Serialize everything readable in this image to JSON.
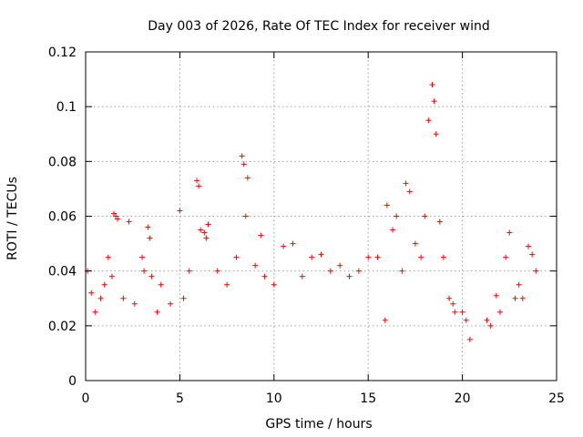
{
  "chart_data": {
    "type": "scatter",
    "title": "Day 003 of 2026, Rate Of TEC Index for receiver wind",
    "xlabel": "GPS time / hours",
    "ylabel": "ROTI / TECUs",
    "xlim": [
      0,
      25
    ],
    "ylim": [
      0,
      0.12
    ],
    "xticks": [
      0,
      5,
      10,
      15,
      20,
      25
    ],
    "xtick_labels": [
      "0",
      "5",
      "10",
      "15",
      "20",
      "25"
    ],
    "yticks": [
      0,
      0.02,
      0.04,
      0.06,
      0.08,
      0.1,
      0.12
    ],
    "ytick_labels": [
      "0",
      "0.02",
      "0.04",
      "0.06",
      "0.08",
      "0.1",
      "0.12"
    ],
    "grid": true,
    "marker": "plus",
    "color": "#ff0000",
    "series": [
      {
        "name": "ROTI",
        "x": [
          0.1,
          0.3,
          0.5,
          0.8,
          1.0,
          1.2,
          1.4,
          1.5,
          1.6,
          1.7,
          2.0,
          2.3,
          2.6,
          3.0,
          3.1,
          3.3,
          3.4,
          3.5,
          3.8,
          4.0,
          4.5,
          5.0,
          5.2,
          5.5,
          5.9,
          6.0,
          6.1,
          6.3,
          6.4,
          6.5,
          7.0,
          7.5,
          8.0,
          8.3,
          8.4,
          8.5,
          8.6,
          9.0,
          9.3,
          9.5,
          10.0,
          10.5,
          11.0,
          11.5,
          12.0,
          12.5,
          13.0,
          13.5,
          14.0,
          14.5,
          15.0,
          15.5,
          15.9,
          16.0,
          16.3,
          16.5,
          16.8,
          17.0,
          17.2,
          17.5,
          17.8,
          18.0,
          18.2,
          18.4,
          18.5,
          18.6,
          18.8,
          19.0,
          19.3,
          19.5,
          19.6,
          20.0,
          20.2,
          20.4,
          21.3,
          21.5,
          21.8,
          22.0,
          22.3,
          22.5,
          22.8,
          23.0,
          23.2,
          23.5,
          23.7,
          23.9
        ],
        "y": [
          0.04,
          0.032,
          0.025,
          0.03,
          0.035,
          0.045,
          0.038,
          0.061,
          0.06,
          0.059,
          0.03,
          0.058,
          0.028,
          0.045,
          0.04,
          0.056,
          0.052,
          0.038,
          0.025,
          0.035,
          0.028,
          0.062,
          0.03,
          0.04,
          0.073,
          0.071,
          0.055,
          0.054,
          0.052,
          0.057,
          0.04,
          0.035,
          0.045,
          0.082,
          0.079,
          0.06,
          0.074,
          0.042,
          0.053,
          0.038,
          0.035,
          0.049,
          0.05,
          0.038,
          0.045,
          0.046,
          0.04,
          0.042,
          0.038,
          0.04,
          0.045,
          0.045,
          0.022,
          0.064,
          0.055,
          0.06,
          0.04,
          0.072,
          0.069,
          0.05,
          0.045,
          0.06,
          0.095,
          0.108,
          0.102,
          0.09,
          0.058,
          0.045,
          0.03,
          0.028,
          0.025,
          0.025,
          0.022,
          0.015,
          0.022,
          0.02,
          0.031,
          0.025,
          0.045,
          0.054,
          0.03,
          0.035,
          0.03,
          0.049,
          0.046,
          0.04
        ]
      }
    ]
  }
}
